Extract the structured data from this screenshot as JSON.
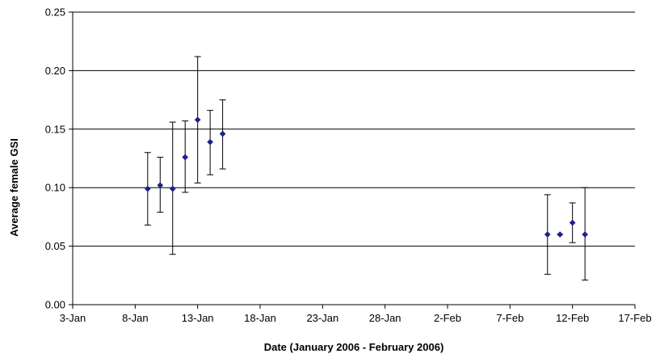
{
  "chart_data": {
    "type": "scatter",
    "title": "",
    "xlabel": "Date (January 2006 - February 2006)",
    "ylabel": "Average female GSI",
    "xlim": [
      "2006-01-03",
      "2006-02-17"
    ],
    "ylim": [
      0,
      0.25
    ],
    "x_ticks": [
      "2006-01-03",
      "2006-01-08",
      "2006-01-13",
      "2006-01-18",
      "2006-01-23",
      "2006-01-28",
      "2006-02-02",
      "2006-02-07",
      "2006-02-12",
      "2006-02-17"
    ],
    "x_tick_labels": [
      "3-Jan",
      "8-Jan",
      "13-Jan",
      "18-Jan",
      "23-Jan",
      "28-Jan",
      "2-Feb",
      "7-Feb",
      "12-Feb",
      "17-Feb"
    ],
    "y_ticks": [
      0,
      0.05,
      0.1,
      0.15,
      0.2,
      0.25
    ],
    "y_tick_labels": [
      "0.00",
      "0.05",
      "0.10",
      "0.15",
      "0.20",
      "0.25"
    ],
    "grid": "horizontal",
    "legend": "none",
    "marker_color": "#1f1f8f",
    "series": [
      {
        "points": [
          {
            "x": "2006-01-09",
            "y": 0.099,
            "err_low": 0.068,
            "err_high": 0.13
          },
          {
            "x": "2006-01-10",
            "y": 0.102,
            "err_low": 0.079,
            "err_high": 0.126
          },
          {
            "x": "2006-01-11",
            "y": 0.099,
            "err_low": 0.043,
            "err_high": 0.156
          },
          {
            "x": "2006-01-12",
            "y": 0.126,
            "err_low": 0.096,
            "err_high": 0.157
          },
          {
            "x": "2006-01-13",
            "y": 0.158,
            "err_low": 0.104,
            "err_high": 0.212
          },
          {
            "x": "2006-01-14",
            "y": 0.139,
            "err_low": 0.111,
            "err_high": 0.166
          },
          {
            "x": "2006-01-15",
            "y": 0.146,
            "err_low": 0.116,
            "err_high": 0.175
          },
          {
            "x": "2006-02-10",
            "y": 0.06,
            "err_low": 0.026,
            "err_high": 0.094
          },
          {
            "x": "2006-02-11",
            "y": 0.06,
            "err_low": 0.06,
            "err_high": 0.06
          },
          {
            "x": "2006-02-12",
            "y": 0.07,
            "err_low": 0.053,
            "err_high": 0.087
          },
          {
            "x": "2006-02-13",
            "y": 0.06,
            "err_low": 0.021,
            "err_high": 0.1
          }
        ]
      }
    ]
  }
}
